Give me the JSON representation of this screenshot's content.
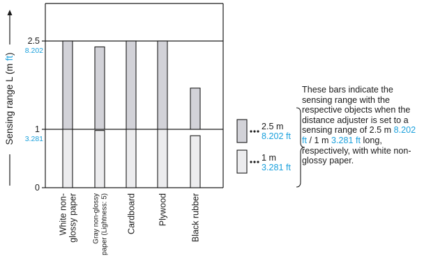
{
  "chart_data": {
    "type": "bar",
    "ylabel_main": "Sensing range L (m",
    "ylabel_unit": "ft",
    "ylabel_close": ")",
    "y_ticks": [
      {
        "value": 0,
        "m": "0",
        "ft": ""
      },
      {
        "value": 1,
        "m": "1",
        "ft": "3.281"
      },
      {
        "value": 2.5,
        "m": "2.5",
        "ft": "8.202"
      }
    ],
    "ylim": [
      0,
      2.5
    ],
    "categories": [
      {
        "lines": [
          "White non-",
          "glossy paper"
        ],
        "small": false
      },
      {
        "lines": [
          "Gray non-glossy",
          "paper (Lightness: 5)"
        ],
        "small": true
      },
      {
        "lines": [
          "Cardboard"
        ],
        "small": false
      },
      {
        "lines": [
          "Plywood"
        ],
        "small": false
      },
      {
        "lines": [
          "Black rubber"
        ],
        "small": false
      }
    ],
    "series": [
      {
        "values": [
          2.5,
          2.4,
          2.5,
          2.5,
          1.7
        ],
        "color": "#d2d2d8"
      },
      {
        "values": [
          1.0,
          0.98,
          1.0,
          1.0,
          0.89
        ],
        "color": "#ececee"
      }
    ]
  },
  "legend": [
    {
      "m": "2.5 m",
      "ft": "8.202 ft",
      "color": "#d2d2d8"
    },
    {
      "m": "1 m",
      "ft": "3.281 ft",
      "color": "#ececee"
    }
  ],
  "note": {
    "part1": "These bars indicate the sensing range with the respective objects when the distance adjuster is set to a sensing range of 2.5 m ",
    "ft1": "8.202 ft",
    "part2": " / 1 m ",
    "ft2": "3.281 ft",
    "part3": " long, respectively, with white non-glossy paper."
  },
  "colors": {
    "accent": "#1aa0dc",
    "line": "#1a1a1a"
  }
}
